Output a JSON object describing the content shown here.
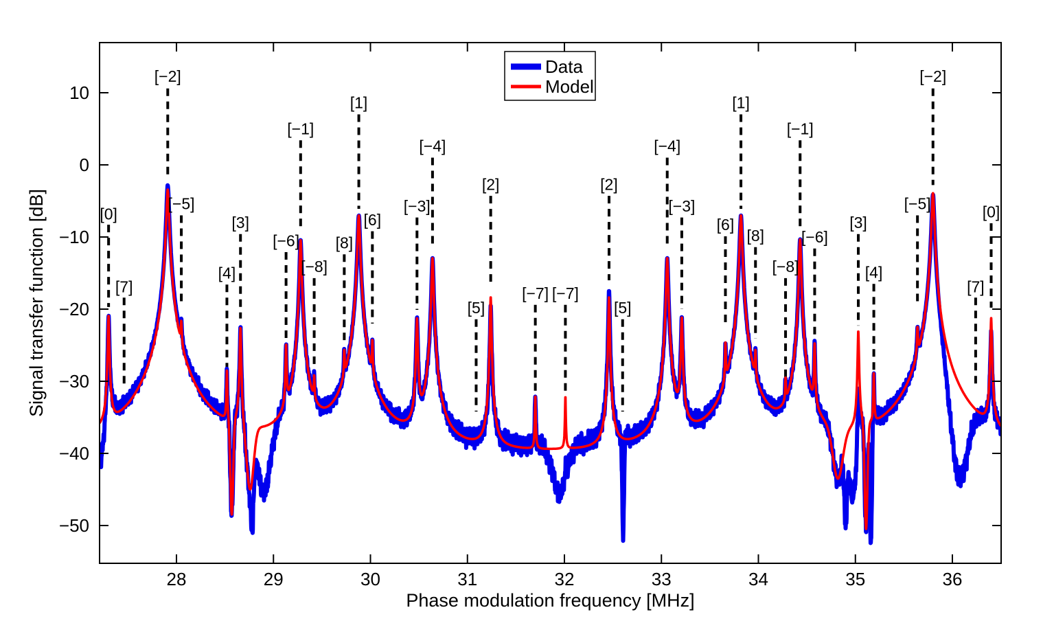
{
  "figure": {
    "xlabel": "Phase modulation frequency [MHz]",
    "ylabel": "Signal transfer function [dB]",
    "legend": [
      {
        "label": "Data",
        "color": "#0000ee"
      },
      {
        "label": "Model",
        "color": "#ff0000"
      }
    ]
  },
  "chart_data": {
    "type": "line",
    "title": "",
    "xlabel": "Phase modulation frequency [MHz]",
    "ylabel": "Signal transfer function [dB]",
    "xlim": [
      27.207,
      36.503
    ],
    "ylim": [
      -55.2,
      17.0
    ],
    "x_ticks": [
      28,
      29,
      30,
      31,
      32,
      33,
      34,
      35,
      36
    ],
    "y_ticks": [
      10,
      0,
      -10,
      -20,
      -30,
      -40,
      -50
    ],
    "grid": false,
    "legend_position": "top-center",
    "series": [
      {
        "name": "Data",
        "color": "#0000ee",
        "width": 6,
        "style": "noisy measured spectrum"
      },
      {
        "name": "Model",
        "color": "#ff0000",
        "width": 3.5,
        "style": "lorentzian-sum fit"
      }
    ],
    "model_floor_db": -40.8,
    "data_floor_db": -40.2,
    "noise_amp_db": 1.3,
    "peaks": [
      {
        "label": "[0]",
        "f": 27.3,
        "model_db": -21.0,
        "width": 0.0065,
        "data_delta_db": 0.8,
        "label_db": -6.8,
        "dash_top_db": -8.3,
        "dash_bottom_db": -19.7
      },
      {
        "label": "[7]",
        "f": 27.46,
        "model_db": null,
        "width": 0.004,
        "data_delta_db": 0,
        "label_db": -16.9,
        "dash_top_db": -18.4,
        "dash_bottom_db": -30.8
      },
      {
        "label": "[−2]",
        "f": 27.91,
        "model_db": -3.4,
        "width": 0.012,
        "data_delta_db": 0.6,
        "label_db": 12.3,
        "dash_top_db": 10.6,
        "dash_bottom_db": -1.8
      },
      {
        "label": "[−5]",
        "f": 28.05,
        "model_db": -24.5,
        "width": 0.005,
        "data_delta_db": 0,
        "label_db": -5.4,
        "dash_top_db": -7.0,
        "dash_bottom_db": -19.3
      },
      {
        "label": "[4]",
        "f": 28.52,
        "model_db": -29.3,
        "width": 0.004,
        "data_delta_db": 0,
        "label_db": -15.0,
        "dash_top_db": -16.6,
        "dash_bottom_db": -28.6
      },
      {
        "label": "[3]",
        "f": 28.66,
        "model_db": -22.3,
        "width": 0.006,
        "data_delta_db": 0,
        "label_db": -8.0,
        "dash_top_db": -9.6,
        "dash_bottom_db": -21.3
      },
      {
        "label": "[−6]",
        "f": 29.13,
        "model_db": -25.5,
        "width": 0.005,
        "data_delta_db": 0,
        "label_db": -10.5,
        "dash_top_db": -12.1,
        "dash_bottom_db": -24.2
      },
      {
        "label": "[−1]",
        "f": 29.28,
        "model_db": -10.4,
        "width": 0.009,
        "data_delta_db": 0,
        "label_db": 5.0,
        "dash_top_db": 3.4,
        "dash_bottom_db": -9.0
      },
      {
        "label": "[−8]",
        "f": 29.42,
        "model_db": -32.0,
        "width": 0.004,
        "data_delta_db": 0,
        "label_db": -14.1,
        "dash_top_db": -15.7,
        "dash_bottom_db": -30.3
      },
      {
        "label": "[8]",
        "f": 29.73,
        "model_db": -28.0,
        "width": 0.004,
        "data_delta_db": 0,
        "label_db": -10.8,
        "dash_top_db": -12.4,
        "dash_bottom_db": -24.3
      },
      {
        "label": "[1]",
        "f": 29.88,
        "model_db": -7.0,
        "width": 0.011,
        "data_delta_db": 0,
        "label_db": 8.6,
        "dash_top_db": 7.0,
        "dash_bottom_db": -6.1
      },
      {
        "label": "[6]",
        "f": 30.02,
        "model_db": -26.0,
        "width": 0.004,
        "data_delta_db": 0,
        "label_db": -7.6,
        "dash_top_db": -9.2,
        "dash_bottom_db": -22.0
      },
      {
        "label": "[−3]",
        "f": 30.48,
        "model_db": -21.4,
        "width": 0.007,
        "data_delta_db": 0,
        "label_db": -5.7,
        "dash_top_db": -7.3,
        "dash_bottom_db": -20.1
      },
      {
        "label": "[−4]",
        "f": 30.64,
        "model_db": -12.9,
        "width": 0.009,
        "data_delta_db": 0,
        "label_db": 2.6,
        "dash_top_db": 1.0,
        "dash_bottom_db": -11.6
      },
      {
        "label": "[5]",
        "f": 31.09,
        "model_db": null,
        "width": 0.004,
        "data_delta_db": 0,
        "label_db": -19.8,
        "dash_top_db": -21.4,
        "dash_bottom_db": -34.2
      },
      {
        "label": "[2]",
        "f": 31.24,
        "model_db": -18.3,
        "width": 0.006,
        "data_delta_db": -1.2,
        "label_db": -2.7,
        "dash_top_db": -4.3,
        "dash_bottom_db": -16.8
      },
      {
        "label": "[−7]",
        "f": 31.7,
        "model_db": -32.8,
        "width": 0.004,
        "data_delta_db": 0,
        "label_db": -17.8,
        "dash_top_db": -19.4,
        "dash_bottom_db": -31.7
      },
      {
        "label": "[−7]",
        "f": 32.01,
        "model_db": -32.9,
        "width": 0.004,
        "data_delta_db": 0,
        "label_db": -17.8,
        "dash_top_db": -19.4,
        "dash_bottom_db": -31.7
      },
      {
        "label": "[2]",
        "f": 32.46,
        "model_db": -18.3,
        "width": 0.006,
        "data_delta_db": 0.9,
        "label_db": -2.7,
        "dash_top_db": -4.3,
        "dash_bottom_db": -16.0
      },
      {
        "label": "[5]",
        "f": 32.6,
        "model_db": null,
        "width": 0.004,
        "data_delta_db": 0,
        "label_db": -19.8,
        "dash_top_db": -21.4,
        "dash_bottom_db": -34.2
      },
      {
        "label": "[−4]",
        "f": 33.06,
        "model_db": -12.9,
        "width": 0.009,
        "data_delta_db": 0,
        "label_db": 2.6,
        "dash_top_db": 1.0,
        "dash_bottom_db": -11.6
      },
      {
        "label": "[−3]",
        "f": 33.21,
        "model_db": -21.3,
        "width": 0.007,
        "data_delta_db": 0,
        "label_db": -5.7,
        "dash_top_db": -7.3,
        "dash_bottom_db": -20.0
      },
      {
        "label": "[6]",
        "f": 33.66,
        "model_db": -26.0,
        "width": 0.004,
        "data_delta_db": 0,
        "label_db": -8.3,
        "dash_top_db": -9.9,
        "dash_bottom_db": -22.2
      },
      {
        "label": "[1]",
        "f": 33.82,
        "model_db": -7.0,
        "width": 0.011,
        "data_delta_db": 0,
        "label_db": 8.6,
        "dash_top_db": 7.0,
        "dash_bottom_db": -6.1
      },
      {
        "label": "[8]",
        "f": 33.97,
        "model_db": -28.0,
        "width": 0.004,
        "data_delta_db": 0,
        "label_db": -9.8,
        "dash_top_db": -11.4,
        "dash_bottom_db": -24.1
      },
      {
        "label": "[−8]",
        "f": 34.28,
        "model_db": -32.3,
        "width": 0.004,
        "data_delta_db": 0,
        "label_db": -14.1,
        "dash_top_db": -15.7,
        "dash_bottom_db": -30.0
      },
      {
        "label": "[−1]",
        "f": 34.43,
        "model_db": -10.3,
        "width": 0.009,
        "data_delta_db": 0,
        "label_db": 5.0,
        "dash_top_db": 3.4,
        "dash_bottom_db": -9.0
      },
      {
        "label": "[−6]",
        "f": 34.58,
        "model_db": -25.3,
        "width": 0.005,
        "data_delta_db": 0,
        "label_db": -10.0,
        "dash_top_db": -11.6,
        "dash_bottom_db": -24.0
      },
      {
        "label": "[3]",
        "f": 35.03,
        "model_db": -23.2,
        "width": 0.006,
        "data_delta_db": 0,
        "label_db": -8.0,
        "dash_top_db": -9.6,
        "dash_bottom_db": -22.3
      },
      {
        "label": "[4]",
        "f": 35.19,
        "model_db": -29.7,
        "width": 0.004,
        "data_delta_db": 0,
        "label_db": -14.9,
        "dash_top_db": -16.5,
        "dash_bottom_db": -28.5
      },
      {
        "label": "[−5]",
        "f": 35.64,
        "model_db": -24.7,
        "width": 0.005,
        "data_delta_db": 0,
        "label_db": -5.4,
        "dash_top_db": -7.0,
        "dash_bottom_db": -19.3
      },
      {
        "label": "[−2]",
        "f": 35.8,
        "model_db": -3.9,
        "width": 0.012,
        "data_delta_db": 0,
        "label_db": 12.3,
        "dash_top_db": 10.6,
        "dash_bottom_db": -2.8
      },
      {
        "label": "[7]",
        "f": 36.24,
        "model_db": null,
        "width": 0.004,
        "data_delta_db": 0,
        "label_db": -16.9,
        "dash_top_db": -18.4,
        "dash_bottom_db": -30.9
      },
      {
        "label": "[0]",
        "f": 36.4,
        "model_db": -21.3,
        "width": 0.0065,
        "data_delta_db": -2.0,
        "label_db": -6.5,
        "dash_top_db": -8.1,
        "dash_bottom_db": -19.8
      }
    ],
    "model_notches": [
      {
        "f": 28.57,
        "target_db": -48.5,
        "width": 0.02
      },
      {
        "f": 28.76,
        "target_db": -45.0,
        "width": 0.05
      },
      {
        "f": 34.82,
        "target_db": -43.5,
        "width": 0.07
      },
      {
        "f": 35.11,
        "target_db": -50.5,
        "width": 0.02
      }
    ],
    "data_notches": [
      {
        "f": 27.21,
        "target_db": -41.0,
        "width": 0.05
      },
      {
        "f": 28.78,
        "target_db": -51.5,
        "width": 0.02
      },
      {
        "f": 28.9,
        "target_db": -45.5,
        "width": 0.09
      },
      {
        "f": 31.95,
        "target_db": -45.5,
        "width": 0.1
      },
      {
        "f": 32.605,
        "target_db": -51.0,
        "width": 0.013
      },
      {
        "f": 34.9,
        "target_db": -51.5,
        "width": 0.02
      },
      {
        "f": 34.97,
        "target_db": -46.0,
        "width": 0.06
      },
      {
        "f": 35.16,
        "target_db": -52.0,
        "width": 0.015
      },
      {
        "f": 36.08,
        "target_db": -43.5,
        "width": 0.12
      }
    ]
  }
}
